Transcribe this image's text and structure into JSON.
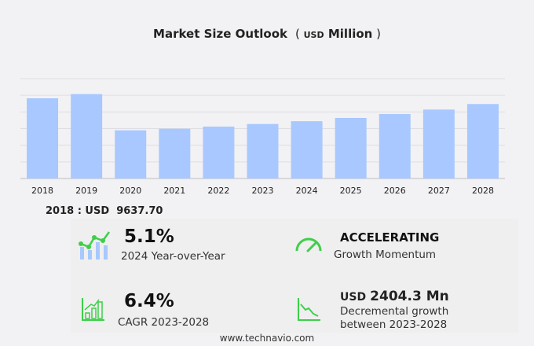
{
  "chart_data": {
    "type": "bar",
    "title": "Market Size Outlook",
    "unit_prefix": "USD",
    "unit_suffix": "Million",
    "categories": [
      "2018",
      "2019",
      "2020",
      "2021",
      "2022",
      "2023",
      "2024",
      "2025",
      "2026",
      "2027",
      "2028"
    ],
    "values": [
      9637.7,
      10140,
      5790,
      5980,
      6235,
      6550,
      6884,
      7275,
      7750,
      8285,
      8950
    ],
    "ylim": [
      0,
      12000
    ],
    "grid": true,
    "bar_color": "#a8c8ff"
  },
  "base_year": {
    "label": "2018 : USD",
    "value": "9637.70"
  },
  "stats": {
    "yoy": {
      "value": "5.1%",
      "label": "2024 Year-over-Year"
    },
    "momentum": {
      "value": "ACCELERATING",
      "label": "Growth Momentum"
    },
    "cagr": {
      "value": "6.4%",
      "label": "CAGR 2023-2028"
    },
    "growth": {
      "prefix": "USD",
      "value": "2404.3 Mn",
      "label1": "Decremental growth",
      "label2": "between 2023-2028"
    }
  },
  "footer": "www.technavio.com",
  "colors": {
    "accent_green": "#3ecf4a",
    "bar": "#a8c8ff"
  }
}
